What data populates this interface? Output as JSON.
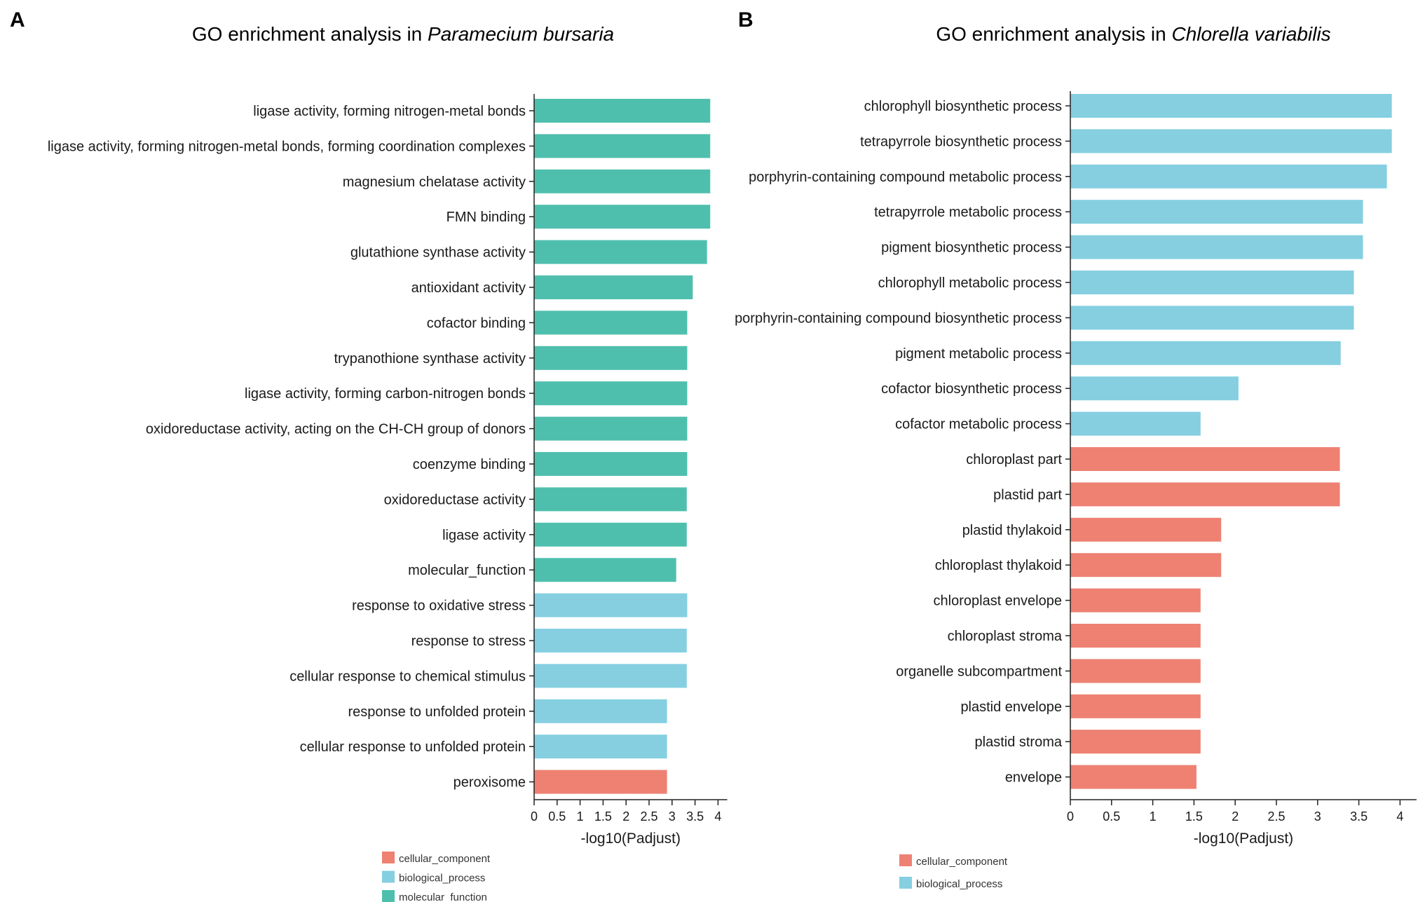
{
  "colors": {
    "cellular_component": "#ee8172",
    "biological_process": "#85cfe1",
    "molecular_function": "#4fbfad"
  },
  "chart_data": [
    {
      "panel": "A",
      "type": "bar",
      "orientation": "horizontal",
      "title_prefix": "GO enrichment analysis in ",
      "title_species": "Paramecium bursaria",
      "xlabel": "-log10(Padjust)",
      "xlim": [
        0,
        4.2
      ],
      "xticks": [
        "0",
        "0.5",
        "1",
        "1.5",
        "2",
        "2.5",
        "3",
        "3.5",
        "4"
      ],
      "categories": [
        "ligase activity, forming nitrogen-metal bonds",
        "ligase activity, forming nitrogen-metal bonds, forming coordination complexes",
        "magnesium chelatase activity",
        "FMN binding",
        "glutathione synthase activity",
        "antioxidant activity",
        "cofactor binding",
        "trypanothione synthase activity",
        "ligase activity, forming carbon-nitrogen bonds",
        "oxidoreductase activity, acting on the CH-CH group of donors",
        "coenzyme binding",
        "oxidoreductase activity",
        "ligase activity",
        "molecular_function",
        "response to oxidative stress",
        "response to stress",
        "cellular response to chemical stimulus",
        "response to unfolded protein",
        "cellular response to unfolded protein",
        "peroxisome"
      ],
      "values": [
        3.83,
        3.83,
        3.83,
        3.83,
        3.76,
        3.45,
        3.33,
        3.33,
        3.33,
        3.33,
        3.33,
        3.32,
        3.32,
        3.09,
        3.33,
        3.32,
        3.32,
        2.89,
        2.89,
        2.89
      ],
      "groups": [
        "molecular_function",
        "molecular_function",
        "molecular_function",
        "molecular_function",
        "molecular_function",
        "molecular_function",
        "molecular_function",
        "molecular_function",
        "molecular_function",
        "molecular_function",
        "molecular_function",
        "molecular_function",
        "molecular_function",
        "molecular_function",
        "biological_process",
        "biological_process",
        "biological_process",
        "biological_process",
        "biological_process",
        "cellular_component"
      ],
      "legend": [
        "cellular_component",
        "biological_process",
        "molecular_function"
      ]
    },
    {
      "panel": "B",
      "type": "bar",
      "orientation": "horizontal",
      "title_prefix": "GO enrichment analysis in ",
      "title_species": "Chlorella variabilis",
      "xlabel": "-log10(Padjust)",
      "xlim": [
        0,
        4.2
      ],
      "xticks": [
        "0",
        "0.5",
        "1",
        "1.5",
        "2",
        "2.5",
        "3",
        "3.5",
        "4"
      ],
      "categories": [
        "chlorophyll biosynthetic process",
        "tetrapyrrole biosynthetic process",
        "porphyrin-containing compound metabolic process",
        "tetrapyrrole metabolic process",
        "pigment biosynthetic process",
        "chlorophyll metabolic process",
        "porphyrin-containing compound biosynthetic process",
        "pigment metabolic process",
        "cofactor biosynthetic process",
        "cofactor metabolic process",
        "chloroplast part",
        "plastid part",
        "plastid thylakoid",
        "chloroplast thylakoid",
        "chloroplast envelope",
        "chloroplast stroma",
        "organelle subcompartment",
        "plastid envelope",
        "plastid stroma",
        "envelope"
      ],
      "values": [
        3.9,
        3.9,
        3.84,
        3.55,
        3.55,
        3.44,
        3.44,
        3.28,
        2.04,
        1.58,
        3.27,
        3.27,
        1.83,
        1.83,
        1.58,
        1.58,
        1.58,
        1.58,
        1.58,
        1.53
      ],
      "groups": [
        "biological_process",
        "biological_process",
        "biological_process",
        "biological_process",
        "biological_process",
        "biological_process",
        "biological_process",
        "biological_process",
        "biological_process",
        "biological_process",
        "cellular_component",
        "cellular_component",
        "cellular_component",
        "cellular_component",
        "cellular_component",
        "cellular_component",
        "cellular_component",
        "cellular_component",
        "cellular_component",
        "cellular_component"
      ],
      "legend": [
        "cellular_component",
        "biological_process"
      ]
    }
  ]
}
